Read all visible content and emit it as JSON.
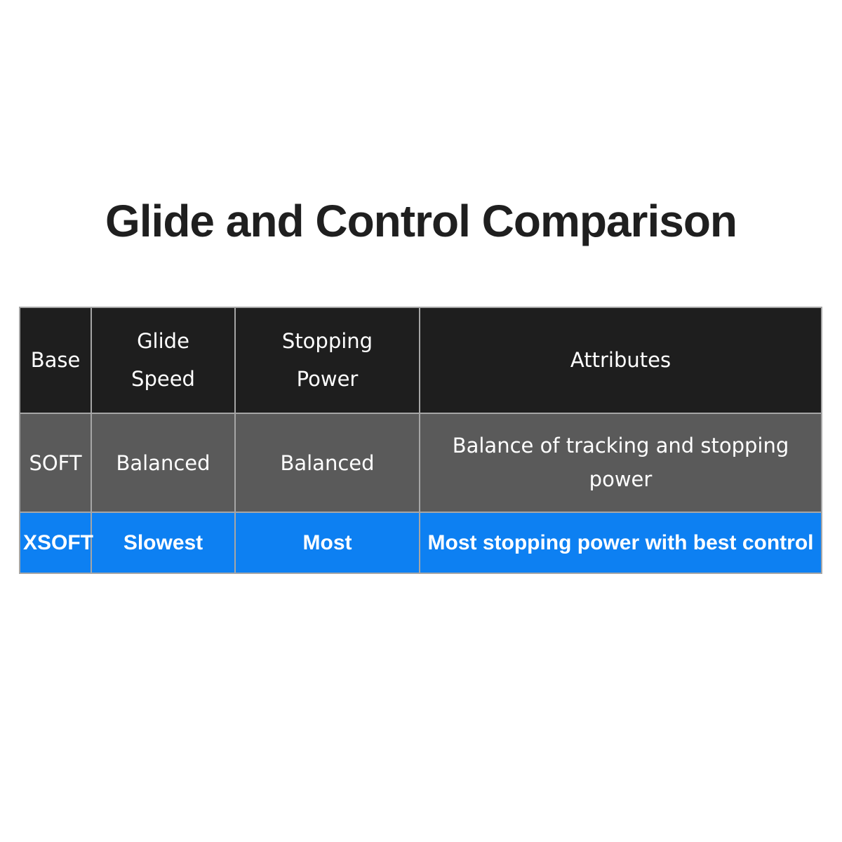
{
  "title": "Glide and Control Comparison",
  "chart_data": {
    "type": "table",
    "title": "Glide and Control Comparison",
    "columns": [
      "Base",
      "Glide Speed",
      "Stopping Power",
      "Attributes"
    ],
    "rows": [
      {
        "base": "SOFT",
        "glide_speed": "Balanced",
        "stopping_power": "Balanced",
        "attributes": "Balance of tracking and stopping power",
        "highlighted": false
      },
      {
        "base": "XSOFT",
        "glide_speed": "Slowest",
        "stopping_power": "Most",
        "attributes": "Most stopping power with best control",
        "highlighted": true
      }
    ],
    "layout_hints": {
      "header_style": "dark",
      "highlight_row": "XSOFT",
      "grid": true,
      "text_align": "center"
    }
  },
  "colors": {
    "page_bg": "#ffffff",
    "title_text": "#1f1f1f",
    "header_bg": "#1e1e1e",
    "row_soft_bg": "#5a5a5a",
    "row_xsoft_bg": "#0d80f2",
    "table_border": "#a6a6a6",
    "table_text": "#ffffff"
  }
}
